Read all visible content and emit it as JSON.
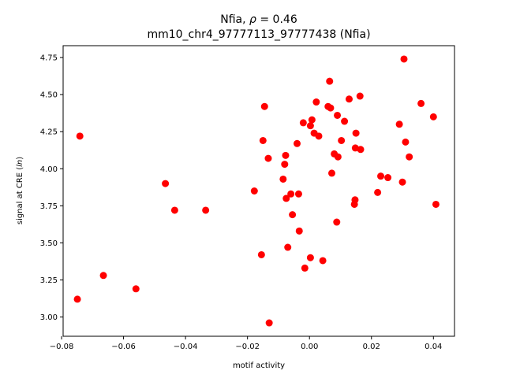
{
  "chart_data": {
    "type": "scatter",
    "title": "Nfia, ρ = 0.46",
    "title_prefix": "Nfia, ",
    "title_rho": "ρ",
    "title_suffix": " = 0.46",
    "subtitle": "mm10_chr4_97777113_97777438 (Nfia)",
    "xlabel": "motif activity",
    "ylabel_prefix": "signal at CRE (",
    "ylabel_ln": "ln",
    "ylabel_suffix": ")",
    "xlim": [
      -0.0795,
      0.0468
    ],
    "ylim": [
      2.87,
      4.83
    ],
    "xticks": [
      -0.08,
      -0.06,
      -0.04,
      -0.02,
      0.0,
      0.02,
      0.04
    ],
    "xtick_labels": [
      "−0.08",
      "−0.06",
      "−0.04",
      "−0.02",
      "0.00",
      "0.02",
      "0.04"
    ],
    "yticks": [
      3.0,
      3.25,
      3.5,
      3.75,
      4.0,
      4.25,
      4.5,
      4.75
    ],
    "ytick_labels": [
      "3.00",
      "3.25",
      "3.50",
      "3.75",
      "4.00",
      "4.25",
      "4.50",
      "4.75"
    ],
    "grid": false,
    "marker_color": "#ff0000",
    "points": [
      {
        "x": -0.0749,
        "y": 3.12
      },
      {
        "x": -0.0741,
        "y": 4.22
      },
      {
        "x": -0.0665,
        "y": 3.28
      },
      {
        "x": -0.056,
        "y": 3.19
      },
      {
        "x": -0.0465,
        "y": 3.9
      },
      {
        "x": -0.0435,
        "y": 3.72
      },
      {
        "x": -0.0335,
        "y": 3.72
      },
      {
        "x": -0.0178,
        "y": 3.85
      },
      {
        "x": -0.0155,
        "y": 3.42
      },
      {
        "x": -0.015,
        "y": 4.19
      },
      {
        "x": -0.0145,
        "y": 4.42
      },
      {
        "x": -0.0133,
        "y": 4.07
      },
      {
        "x": -0.013,
        "y": 2.96
      },
      {
        "x": -0.0085,
        "y": 3.93
      },
      {
        "x": -0.008,
        "y": 4.03
      },
      {
        "x": -0.0077,
        "y": 4.09
      },
      {
        "x": -0.0075,
        "y": 3.8
      },
      {
        "x": -0.007,
        "y": 3.47
      },
      {
        "x": -0.006,
        "y": 3.83
      },
      {
        "x": -0.0055,
        "y": 3.69
      },
      {
        "x": -0.004,
        "y": 4.17
      },
      {
        "x": -0.0035,
        "y": 3.83
      },
      {
        "x": -0.0033,
        "y": 3.58
      },
      {
        "x": -0.002,
        "y": 4.31
      },
      {
        "x": -0.0015,
        "y": 3.33
      },
      {
        "x": 0.0003,
        "y": 3.4
      },
      {
        "x": 0.0003,
        "y": 4.29
      },
      {
        "x": 0.0008,
        "y": 4.33
      },
      {
        "x": 0.0015,
        "y": 4.24
      },
      {
        "x": 0.0022,
        "y": 4.45
      },
      {
        "x": 0.003,
        "y": 4.22
      },
      {
        "x": 0.0043,
        "y": 3.38
      },
      {
        "x": 0.006,
        "y": 4.42
      },
      {
        "x": 0.0065,
        "y": 4.59
      },
      {
        "x": 0.0068,
        "y": 4.41
      },
      {
        "x": 0.0072,
        "y": 3.97
      },
      {
        "x": 0.008,
        "y": 4.1
      },
      {
        "x": 0.0088,
        "y": 3.64
      },
      {
        "x": 0.009,
        "y": 4.36
      },
      {
        "x": 0.0092,
        "y": 4.08
      },
      {
        "x": 0.0103,
        "y": 4.19
      },
      {
        "x": 0.0113,
        "y": 4.32
      },
      {
        "x": 0.0128,
        "y": 4.47
      },
      {
        "x": 0.0145,
        "y": 3.76
      },
      {
        "x": 0.0147,
        "y": 3.79
      },
      {
        "x": 0.0148,
        "y": 4.14
      },
      {
        "x": 0.015,
        "y": 4.24
      },
      {
        "x": 0.0163,
        "y": 4.49
      },
      {
        "x": 0.0165,
        "y": 4.13
      },
      {
        "x": 0.022,
        "y": 3.84
      },
      {
        "x": 0.023,
        "y": 3.95
      },
      {
        "x": 0.0253,
        "y": 3.94
      },
      {
        "x": 0.029,
        "y": 4.3
      },
      {
        "x": 0.03,
        "y": 3.91
      },
      {
        "x": 0.0305,
        "y": 4.74
      },
      {
        "x": 0.031,
        "y": 4.18
      },
      {
        "x": 0.0322,
        "y": 4.08
      },
      {
        "x": 0.036,
        "y": 4.44
      },
      {
        "x": 0.04,
        "y": 4.35
      },
      {
        "x": 0.0408,
        "y": 3.76
      }
    ]
  }
}
